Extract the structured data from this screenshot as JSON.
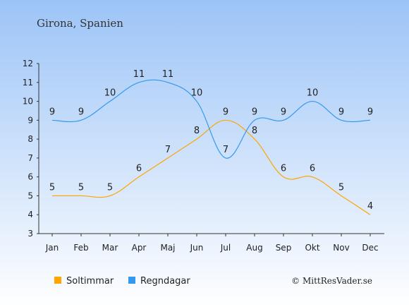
{
  "chart_data": {
    "type": "line",
    "title": "Girona, Spanien",
    "categories": [
      "Jan",
      "Feb",
      "Mar",
      "Apr",
      "Maj",
      "Jun",
      "Jul",
      "Aug",
      "Sep",
      "Okt",
      "Nov",
      "Dec"
    ],
    "ylim": [
      3,
      12
    ],
    "yticks": [
      3,
      4,
      5,
      6,
      7,
      8,
      9,
      10,
      11,
      12
    ],
    "grid": false,
    "legend_position": "bottom-left",
    "series": [
      {
        "name": "Soltimmar",
        "color": "#FFA500",
        "values": [
          5,
          5,
          5,
          6,
          7,
          8,
          9,
          8,
          6,
          6,
          5,
          4
        ]
      },
      {
        "name": "Regndagar",
        "color": "#3399EE",
        "values": [
          9,
          9,
          10,
          11,
          11,
          10,
          7,
          9,
          9,
          10,
          9,
          9
        ]
      }
    ],
    "credit": "© MittResVader.se"
  }
}
